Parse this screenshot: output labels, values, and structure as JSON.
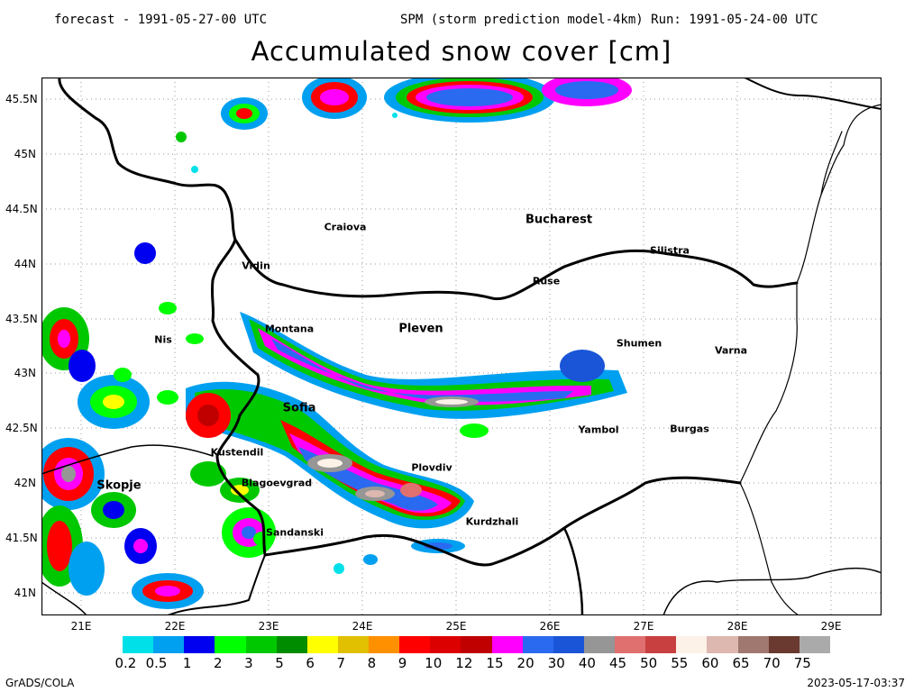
{
  "header": {
    "forecast": "forecast - 1991-05-27-00 UTC",
    "model_run": "SPM (storm prediction model-4km) Run: 1991-05-24-00 UTC"
  },
  "title": "Accumulated snow cover  [cm]",
  "map": {
    "lat_labels": [
      "45.5N",
      "45N",
      "44.5N",
      "44N",
      "43.5N",
      "43N",
      "42.5N",
      "42N",
      "41.5N",
      "41N"
    ],
    "lon_labels": [
      "21E",
      "22E",
      "23E",
      "24E",
      "25E",
      "26E",
      "27E",
      "28E",
      "29E"
    ],
    "cities": [
      {
        "name": "Craiova",
        "big": false
      },
      {
        "name": "Bucharest",
        "big": true
      },
      {
        "name": "Silistra",
        "big": false
      },
      {
        "name": "Vidin",
        "big": false
      },
      {
        "name": "Ruse",
        "big": false
      },
      {
        "name": "Montana",
        "big": false
      },
      {
        "name": "Pleven",
        "big": true
      },
      {
        "name": "Shumen",
        "big": false
      },
      {
        "name": "Varna",
        "big": false
      },
      {
        "name": "Nis",
        "big": false
      },
      {
        "name": "Sofia",
        "big": true
      },
      {
        "name": "Yambol",
        "big": false
      },
      {
        "name": "Burgas",
        "big": false
      },
      {
        "name": "Kustendil",
        "big": false
      },
      {
        "name": "Plovdiv",
        "big": false
      },
      {
        "name": "Skopje",
        "big": true
      },
      {
        "name": "Blagoevgrad",
        "big": false
      },
      {
        "name": "Kurdzhali",
        "big": false
      },
      {
        "name": "Sandanski",
        "big": false
      }
    ]
  },
  "colorbar": {
    "colors": [
      "#00e0e8",
      "#00a0f0",
      "#0000f0",
      "#00ff00",
      "#00c800",
      "#008c00",
      "#ffff00",
      "#e0c000",
      "#ff9000",
      "#ff0000",
      "#dc0000",
      "#c00000",
      "#ff00ff",
      "#2a6af0",
      "#1a55d8",
      "#969696",
      "#e07070",
      "#c84040",
      "#fdf2e8",
      "#dcb8b0",
      "#a07870",
      "#6a3a30",
      "#aaaaaa"
    ],
    "labels": [
      "0.2",
      "0.5",
      "1",
      "2",
      "3",
      "5",
      "6",
      "7",
      "8",
      "9",
      "10",
      "12",
      "15",
      "20",
      "30",
      "40",
      "45",
      "50",
      "55",
      "60",
      "65",
      "70",
      "75"
    ]
  },
  "footer": {
    "left": "GrADS/COLA",
    "right": "2023-05-17-03:37"
  }
}
